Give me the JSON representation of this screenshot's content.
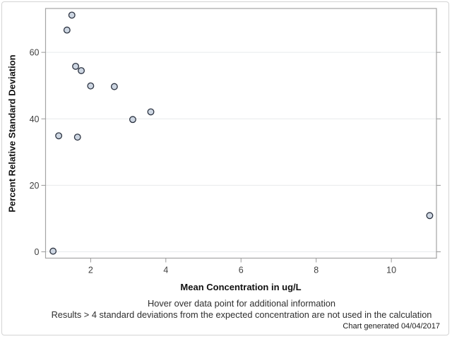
{
  "chart_data": {
    "type": "scatter",
    "title": "",
    "xlabel": "Mean Concentration in ug/L",
    "ylabel": "Percent Relative Standard Deviation",
    "xticks": [
      2,
      4,
      6,
      8,
      10
    ],
    "yticks": [
      0,
      20,
      40,
      60
    ],
    "xlim": [
      0.8,
      11.2
    ],
    "ylim": [
      -1.9,
      73.2
    ],
    "grid": "horizontal",
    "legend": "none",
    "marker": {
      "shape": "circle",
      "radius": 4.3,
      "fill": "#cdd6e2",
      "stroke": "#2b3240"
    },
    "points": [
      {
        "x": 1.0,
        "y": 0.2
      },
      {
        "x": 1.15,
        "y": 34.9
      },
      {
        "x": 1.37,
        "y": 66.7
      },
      {
        "x": 1.5,
        "y": 71.2
      },
      {
        "x": 1.6,
        "y": 55.8
      },
      {
        "x": 1.65,
        "y": 34.5
      },
      {
        "x": 1.75,
        "y": 54.5
      },
      {
        "x": 2.0,
        "y": 49.9
      },
      {
        "x": 2.63,
        "y": 49.7
      },
      {
        "x": 3.12,
        "y": 39.8
      },
      {
        "x": 3.6,
        "y": 42.1
      },
      {
        "x": 11.02,
        "y": 10.9
      }
    ]
  },
  "footnotes": [
    "Hover over data point for additional information",
    "Results > 4 standard deviations from the expected concentration are not used in the calculation"
  ],
  "generated_label": "Chart generated 04/04/2017",
  "colors": {
    "grid": "#e8eaec",
    "frame": "#a5a5a5",
    "tick": "#989898",
    "background": "#ffffff",
    "border": "#d4d4d4"
  }
}
